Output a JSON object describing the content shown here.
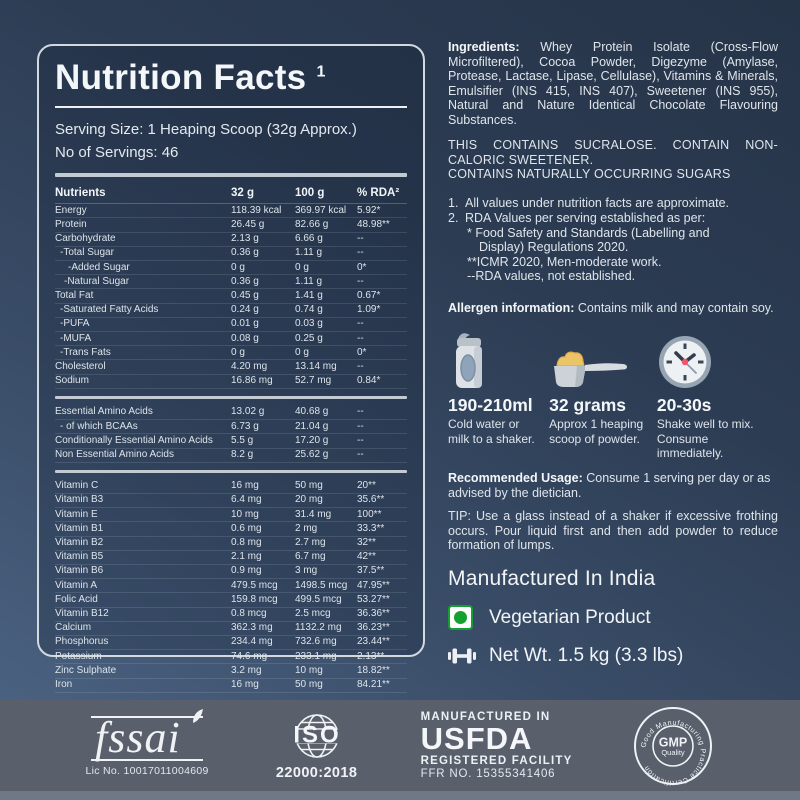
{
  "panel": {
    "title": "Nutrition Facts",
    "title_sup": "1",
    "serving_size": "Serving Size: 1 Heaping Scoop (32g Approx.)",
    "servings": "No of Servings: 46",
    "table": {
      "columns": [
        "Nutrients",
        "32 g",
        "100 g",
        "% RDA²"
      ],
      "sections": [
        {
          "rows": [
            [
              "Energy",
              "118.39 kcal",
              "369.97 kcal",
              "5.92*",
              0
            ],
            [
              "Protein",
              "26.45 g",
              "82.66 g",
              "48.98**",
              0
            ],
            [
              "Carbohydrate",
              "2.13 g",
              "6.66 g",
              "--",
              0
            ],
            [
              "-Total Sugar",
              "0.36 g",
              "1.11 g",
              "--",
              1
            ],
            [
              "-Added Sugar",
              "0 g",
              "0 g",
              "0*",
              3
            ],
            [
              "-Natural Sugar",
              "0.36 g",
              "1.11 g",
              "--",
              2
            ],
            [
              "Total Fat",
              "0.45 g",
              "1.41 g",
              "0.67*",
              0
            ],
            [
              "-Saturated Fatty Acids",
              "0.24 g",
              "0.74 g",
              "1.09*",
              1
            ],
            [
              "-PUFA",
              "0.01 g",
              "0.03 g",
              "--",
              1
            ],
            [
              "-MUFA",
              "0.08 g",
              "0.25 g",
              "--",
              1
            ],
            [
              "-Trans Fats",
              "0 g",
              "0 g",
              "0*",
              1
            ],
            [
              "Cholesterol",
              "4.20 mg",
              "13.14 mg",
              "--",
              0
            ],
            [
              "Sodium",
              "16.86 mg",
              "52.7 mg",
              "0.84*",
              0
            ]
          ]
        },
        {
          "rows": [
            [
              "Essential Amino Acids",
              "13.02 g",
              "40.68 g",
              "--",
              0
            ],
            [
              "- of which BCAAs",
              "6.73 g",
              "21.04 g",
              "--",
              1
            ],
            [
              "Conditionally Essential Amino Acids",
              "5.5 g",
              "17.20 g",
              "--",
              0
            ],
            [
              "Non Essential Amino Acids",
              "8.2 g",
              "25.62 g",
              "--",
              0
            ]
          ]
        },
        {
          "rows": [
            [
              "Vitamin C",
              "16 mg",
              "50 mg",
              "20**",
              0
            ],
            [
              "Vitamin B3",
              "6.4 mg",
              "20 mg",
              "35.6**",
              0
            ],
            [
              "Vitamin E",
              "10 mg",
              "31.4 mg",
              "100**",
              0
            ],
            [
              "Vitamin B1",
              "0.6 mg",
              "2 mg",
              "33.3**",
              0
            ],
            [
              "Vitamin B2",
              "0.8 mg",
              "2.7 mg",
              "32**",
              0
            ],
            [
              "Vitamin B5",
              "2.1 mg",
              "6.7 mg",
              "42**",
              0
            ],
            [
              "Vitamin B6",
              "0.9 mg",
              "3 mg",
              "37.5**",
              0
            ],
            [
              "Vitamin A",
              "479.5 mcg",
              "1498.5 mcg",
              "47.95**",
              0
            ],
            [
              "Folic Acid",
              "159.8 mcg",
              "499.5 mcg",
              "53.27**",
              0
            ],
            [
              "Vitamin B12",
              "0.8 mcg",
              "2.5 mcg",
              "36.36**",
              0
            ],
            [
              "Calcium",
              "362.3 mg",
              "1132.2 mg",
              "36.23**",
              0
            ],
            [
              "Phosphorus",
              "234.4 mg",
              "732.6 mg",
              "23.44**",
              0
            ],
            [
              "Potassium",
              "74.6 mg",
              "233.1 mg",
              "2.13**",
              0
            ],
            [
              "Zinc Sulphate",
              "3.2 mg",
              "10 mg",
              "18.82**",
              0
            ],
            [
              "Iron",
              "16 mg",
              "50 mg",
              "84.21**",
              0
            ]
          ]
        }
      ]
    }
  },
  "right": {
    "ingredients_label": "Ingredients:",
    "ingredients_text": "Whey Protein Isolate (Cross-Flow Microfiltered), Cocoa Powder, Digezyme (Amylase, Protease, Lactase, Lipase, Cellulase), Vitamins & Minerals, Emulsifier (INS 415, INS 407), Sweetener (INS 955), Natural and Nature Identical Chocolate Flavouring Substances.",
    "sucralose_line1": "THIS CONTAINS SUCRALOSE. CONTAIN NON-CALORIC SWEETENER.",
    "sucralose_line2": "CONTAINS NATURALLY OCCURRING SUGARS",
    "notes": [
      {
        "num": "1.",
        "lines": [
          {
            "t": "All values under nutrition facts  are approximate.",
            "i": 0
          }
        ]
      },
      {
        "num": "2.",
        "lines": [
          {
            "t": "RDA Values per serving established as per:",
            "i": 0
          },
          {
            "t": "* Food Safety and Standards (Labelling and",
            "i": 1
          },
          {
            "t": "Display) Regulations 2020.",
            "i": 2
          },
          {
            "t": "**ICMR 2020, Men-moderate work.",
            "i": 1
          },
          {
            "t": "--RDA values, not established.",
            "i": 1
          }
        ]
      }
    ],
    "allergen_label": "Allergen information:",
    "allergen_text": "Contains milk and may contain soy.",
    "steps": [
      {
        "icon": "shaker-icon",
        "value": "190-210ml",
        "caption": "Cold water or milk to a shaker."
      },
      {
        "icon": "scoop-icon",
        "value": "32 grams",
        "caption": "Approx 1 heaping scoop of powder."
      },
      {
        "icon": "clock-icon",
        "value": "20-30s",
        "caption": "Shake well to mix. Consume immediately."
      }
    ],
    "usage_label": "Recommended Usage:",
    "usage_text": "Consume 1 serving per day or as advised by the dietician.",
    "tip_text": "TIP: Use a glass instead of a shaker if excessive frothing occurs. Pour liquid first and then add powder to reduce formation of lumps.",
    "made_in": "Manufactured In India",
    "veg_label": "Vegetarian Product",
    "net_wt": "Net Wt.  1.5 kg (3.3 lbs)"
  },
  "footer": {
    "fssai": {
      "name": "fssai",
      "lic": "Lic No. 10017011004609"
    },
    "iso": {
      "name": "ISO",
      "code": "22000:2018"
    },
    "usfda": {
      "line1": "MANUFACTURED IN",
      "line2": "USFDA",
      "line3": "REGISTERED FACILITY",
      "line4": "FFR NO. 15355341406"
    },
    "gmp": {
      "ring_text": "Good Manufacturing Practice Certification",
      "center1": "GMP",
      "center2": "Quality"
    }
  },
  "colors": {
    "veg_green": "#12a02e",
    "clock_red": "#f2546d",
    "powder_yellow": "#ecc468",
    "footer_band": "#59606c",
    "panel_border": "#d2d9df"
  }
}
